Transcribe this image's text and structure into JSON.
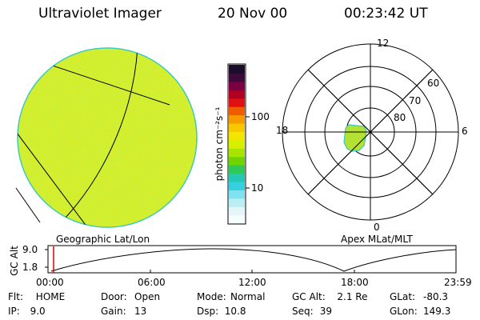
{
  "header": {
    "instrument": "Ultraviolet Imager",
    "date": "20 Nov 00",
    "time": "00:23:42 UT"
  },
  "colorbar": {
    "unit_label": "photon cm⁻²s⁻¹",
    "ticks": [
      "100",
      "10"
    ],
    "colors": [
      "#1a0e2a",
      "#3b0a3a",
      "#7a0040",
      "#b00020",
      "#e01010",
      "#f05a00",
      "#f59b00",
      "#f7c800",
      "#f2e600",
      "#d8f000",
      "#a8e400",
      "#6fd400",
      "#2fc85a",
      "#25c8b4",
      "#36cfe0",
      "#7fe2ee",
      "#b9eef4",
      "#e4f6f8",
      "#f6fbfb"
    ]
  },
  "left_image": {
    "caption": "Geographic Lat/Lon",
    "fill_color": "#d9ef2a"
  },
  "right_image": {
    "caption": "Apex MLat/MLT",
    "lat_labels": [
      "80",
      "70",
      "60"
    ],
    "mlt_labels": [
      "12",
      "6",
      "0",
      "18"
    ]
  },
  "altitude_plot": {
    "ylabel": "GC Alt",
    "yticks": [
      "9.0",
      "1.8"
    ],
    "xticks": [
      "00:00",
      "06:00",
      "12:00",
      "18:00",
      "23:59"
    ],
    "marker_color": "#e00000"
  },
  "status": {
    "rows": [
      [
        {
          "label": "Flt:",
          "value": "HOME"
        },
        {
          "label": "Door:",
          "value": "Open"
        },
        {
          "label": "Mode:",
          "value": "Normal"
        },
        {
          "label": "GC Alt:",
          "value": "2.1 Re"
        },
        {
          "label": "GLat:",
          "value": "-80.3"
        }
      ],
      [
        {
          "label": "IP:",
          "value": "9.0"
        },
        {
          "label": "Gain:",
          "value": "13"
        },
        {
          "label": "Dsp:",
          "value": "10.8"
        },
        {
          "label": "Seq:",
          "value": "39"
        },
        {
          "label": "GLon:",
          "value": "149.3"
        }
      ]
    ]
  }
}
